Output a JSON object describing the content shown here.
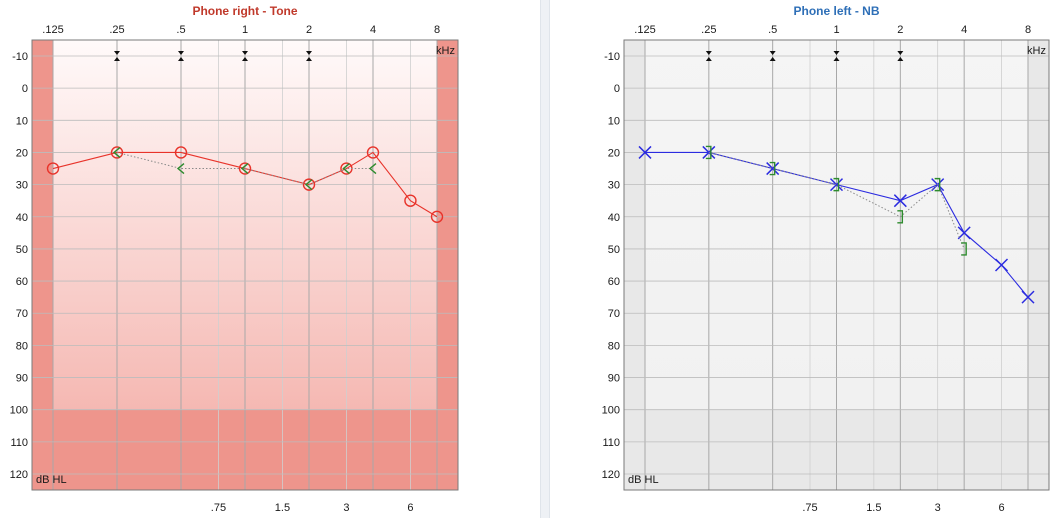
{
  "panels": [
    {
      "title": "Phone right - Tone",
      "title_color": "#c0392b",
      "theme": "right",
      "unit_x": "kHz",
      "unit_y": "dB HL",
      "top_ticks": [
        ".125",
        ".25",
        ".5",
        "1",
        "2",
        "4",
        "8"
      ],
      "bottom_ticks": [
        ".75",
        "1.5",
        "3",
        "6"
      ],
      "y_ticks": [
        "-10",
        "0",
        "10",
        "20",
        "30",
        "40",
        "50",
        "60",
        "70",
        "80",
        "90",
        "100",
        "110",
        "120"
      ]
    },
    {
      "title": "Phone left - NB",
      "title_color": "#2e6fb7",
      "theme": "left",
      "unit_x": "kHz",
      "unit_y": "dB HL",
      "top_ticks": [
        ".125",
        ".25",
        ".5",
        "1",
        "2",
        "4",
        "8"
      ],
      "bottom_ticks": [
        ".75",
        "1.5",
        "3",
        "6"
      ],
      "y_ticks": [
        "-10",
        "0",
        "10",
        "20",
        "30",
        "40",
        "50",
        "60",
        "70",
        "80",
        "90",
        "100",
        "110",
        "120"
      ]
    }
  ],
  "chart_data": [
    {
      "type": "scatter",
      "title": "Phone right - Tone",
      "xlabel": "kHz",
      "ylabel": "dB HL",
      "x_scale": "log2",
      "xlim": [
        0.125,
        8
      ],
      "ylim": [
        -10,
        120
      ],
      "y_inverted": true,
      "grid": true,
      "colors": {
        "air": "#e8332a",
        "masked": "#2e8b2e",
        "bone": "#2e8b2e",
        "band": "#ee958c",
        "plot_top": "#fffafa",
        "plot_bottom": "#f3aaa3"
      },
      "series": [
        {
          "marker": "circle",
          "x": [
            0.125,
            0.25,
            0.5,
            1,
            2,
            3,
            4,
            6,
            8
          ],
          "y": [
            25,
            20,
            20,
            25,
            30,
            25,
            20,
            35,
            40
          ],
          "connected": true
        },
        {
          "marker": "bone-left",
          "x": [
            0.25,
            0.5,
            1,
            2,
            3,
            4
          ],
          "y": [
            20,
            25,
            25,
            30,
            25,
            25
          ],
          "connected": true,
          "dotted": true
        }
      ],
      "arrow_markers_x": [
        0.25,
        0.5,
        1,
        2
      ]
    },
    {
      "type": "scatter",
      "title": "Phone left - NB",
      "xlabel": "kHz",
      "ylabel": "dB HL",
      "x_scale": "log2",
      "xlim": [
        0.125,
        8
      ],
      "ylim": [
        -10,
        120
      ],
      "y_inverted": true,
      "grid": true,
      "colors": {
        "air": "#2b2be0",
        "bone": "#2e8b2e",
        "band": "#e8e8e8",
        "plot_top": "#f5f5f5",
        "plot_bottom": "#f0f0f0"
      },
      "series": [
        {
          "marker": "cross",
          "x": [
            0.125,
            0.25,
            0.5,
            1,
            2,
            3,
            4,
            6,
            8
          ],
          "y": [
            20,
            20,
            25,
            30,
            35,
            30,
            45,
            55,
            65
          ],
          "connected": true
        },
        {
          "marker": "bone-right-masked",
          "x": [
            0.25,
            0.5,
            1,
            2,
            3,
            4
          ],
          "y": [
            20,
            25,
            30,
            40,
            30,
            50
          ],
          "connected": true,
          "dotted": true
        }
      ],
      "arrow_markers_x": [
        0.25,
        0.5,
        1,
        2
      ]
    }
  ]
}
